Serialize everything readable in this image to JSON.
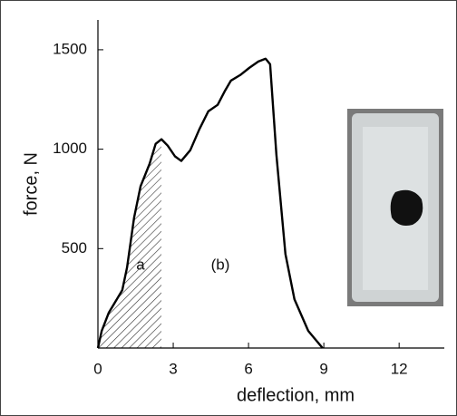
{
  "chart_data": {
    "type": "line",
    "x_label": "deflection, mm",
    "y_label": "force, N",
    "annotations": [
      "a",
      "(b)"
    ],
    "x": [
      0,
      0.15,
      0.43,
      0.97,
      1.16,
      1.44,
      1.7,
      2.06,
      2.3,
      2.53,
      2.78,
      3.07,
      3.32,
      3.68,
      4.04,
      4.4,
      4.77,
      5.05,
      5.3,
      5.67,
      6.03,
      6.39,
      6.68,
      6.86,
      7.11,
      7.47,
      7.83,
      8.38,
      8.95
    ],
    "series": [
      {
        "color": "#000000",
        "values": [
          0,
          86,
          177,
          291,
          405,
          655,
          814,
          927,
          1027,
          1050,
          1018,
          964,
          941,
          995,
          1100,
          1191,
          1223,
          1291,
          1345,
          1373,
          1409,
          1441,
          1455,
          1427,
          973,
          473,
          245,
          86,
          0
        ]
      }
    ],
    "xlim": [
      0,
      13.8
    ],
    "ylim": [
      0,
      1650
    ],
    "xticks": [
      0,
      3,
      6,
      9,
      12
    ],
    "yticks": [
      500,
      1000,
      1500
    ]
  }
}
